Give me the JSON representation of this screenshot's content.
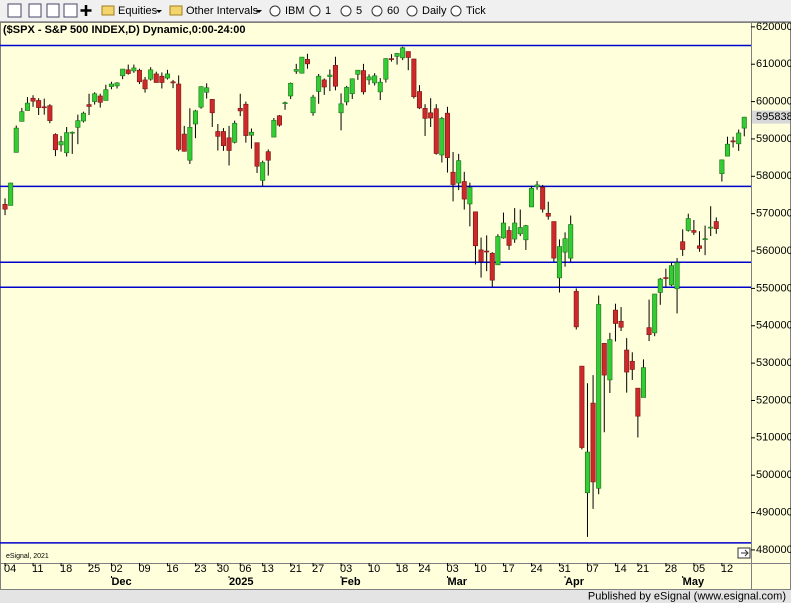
{
  "toolbar": {
    "items": [
      "Equities",
      "Other Intervals",
      "IBM",
      "1",
      "5",
      "60",
      "Daily",
      "Tick"
    ]
  },
  "chart_data": {
    "type": "candlestick",
    "title": "($SPX - S&P 500 INDEX,D) Dynamic,0:00-24:00",
    "up_color": "#33cc33",
    "down_color": "#cc2a2a",
    "open": [
      5725,
      5722,
      5864,
      5947,
      5976,
      6009,
      6003,
      5986,
      5989,
      5912,
      5884,
      5863,
      5917,
      5931,
      5948,
      5992,
      6000,
      6015,
      6003,
      6040,
      6042,
      6069,
      6085,
      6082,
      6084,
      6058,
      6060,
      6074,
      6068,
      6063,
      6053,
      6047,
      5913,
      5843,
      5940,
      5985,
      6025,
      6006,
      5920,
      5920,
      5903,
      5891,
      5982,
      5993,
      5910,
      5890,
      5789,
      5866,
      5905,
      5962,
      5995,
      6015,
      6081,
      6076,
      6113,
      5970,
      6027,
      6058,
      6067,
      6097,
      5970,
      5999,
      6021,
      6073,
      6083,
      6058,
      6050,
      6026,
      6060,
      6115,
      6121,
      6117,
      6134,
      6114,
      6027,
      5982,
      5970,
      5981,
      5857,
      5969,
      5811,
      5782,
      5786,
      5726,
      5705,
      5603,
      5600,
      5594,
      5563,
      5635,
      5655,
      5632,
      5646,
      5630,
      5718,
      5772,
      5771,
      5701,
      5679,
      5528,
      5597,
      5581,
      5492,
      5292,
      4953,
      5193,
      4965,
      5353,
      5255,
      5442,
      5412,
      5335,
      5305,
      5233,
      5208,
      5395,
      5381,
      5489,
      5529,
      5509,
      5499,
      5625,
      5655,
      5655,
      5614,
      5631,
      5663,
      5679,
      5807,
      5854,
      5895,
      5887,
      5929
    ],
    "high": [
      5741,
      5783,
      5936,
      5983,
      6012,
      6017,
      6009,
      6008,
      5993,
      5915,
      5908,
      5932,
      5920,
      5965,
      5973,
      6021,
      6025,
      6021,
      6045,
      6053,
      6052,
      6087,
      6099,
      6099,
      6088,
      6066,
      6092,
      6080,
      6078,
      6085,
      6058,
      6070,
      5935,
      5982,
      5978,
      6041,
      6049,
      6006,
      5940,
      5929,
      5935,
      5949,
      6021,
      6000,
      5928,
      5890,
      5842,
      5872,
      5956,
      5964,
      6000,
      6051,
      6101,
      6119,
      6128,
      6018,
      6074,
      6062,
      6086,
      6120,
      6022,
      6042,
      6062,
      6084,
      6101,
      6073,
      6076,
      6063,
      6116,
      6127,
      6129,
      6147,
      6134,
      6115,
      6044,
      5993,
      6009,
      5993,
      5959,
      5986,
      5865,
      5860,
      5812,
      5783,
      5705,
      5636,
      5642,
      5597,
      5645,
      5703,
      5666,
      5715,
      5711,
      5670,
      5775,
      5787,
      5777,
      5732,
      5679,
      5631,
      5650,
      5695,
      5500,
      5292,
      5246,
      5268,
      5481,
      5353,
      5381,
      5459,
      5450,
      5367,
      5329,
      5233,
      5310,
      5470,
      5485,
      5528,
      5553,
      5571,
      5581,
      5658,
      5700,
      5683,
      5653,
      5668,
      5720,
      5690,
      5845,
      5906,
      5906,
      5925,
      5959
    ],
    "low": [
      5696,
      5722,
      5864,
      5947,
      5976,
      5986,
      5964,
      5965,
      5942,
      5854,
      5866,
      5853,
      5860,
      5886,
      5944,
      5964,
      5992,
      5984,
      6003,
      6033,
      6035,
      6060,
      6072,
      6077,
      6047,
      6024,
      6056,
      6051,
      6035,
      6059,
      6036,
      5867,
      5866,
      5833,
      5902,
      5981,
      6008,
      5932,
      5869,
      5868,
      5829,
      5888,
      5961,
      5890,
      5874,
      5809,
      5773,
      5802,
      5905,
      5933,
      5978,
      6007,
      6074,
      6075,
      6088,
      5962,
      5994,
      6018,
      6028,
      6030,
      5923,
      5990,
      6007,
      6058,
      6019,
      6045,
      6043,
      6004,
      6051,
      6107,
      6099,
      6111,
      6084,
      6008,
      5980,
      5908,
      5932,
      5858,
      5837,
      5810,
      5733,
      5763,
      5711,
      5666,
      5564,
      5529,
      5546,
      5505,
      5563,
      5633,
      5603,
      5622,
      5640,
      5603,
      5718,
      5764,
      5703,
      5684,
      5572,
      5489,
      5558,
      5572,
      5390,
      5069,
      4835,
      4910,
      4949,
      5115,
      5220,
      5358,
      5386,
      5221,
      5255,
      5101,
      5208,
      5359,
      5372,
      5456,
      5505,
      5506,
      5433,
      5587,
      5652,
      5643,
      5598,
      5589,
      5640,
      5646,
      5786,
      5854,
      5877,
      5868,
      5907
    ],
    "close": [
      5712,
      5782,
      5929,
      5973,
      5996,
      6001,
      5984,
      5985,
      5949,
      5871,
      5893,
      5917,
      5918,
      5949,
      5969,
      5987,
      6021,
      5998,
      6032,
      6047,
      6050,
      6087,
      6075,
      6090,
      6053,
      6034,
      6085,
      6051,
      6051,
      6074,
      6050,
      5872,
      5867,
      5931,
      5975,
      6040,
      6037,
      5970,
      5907,
      5882,
      5869,
      5942,
      5975,
      5909,
      5918,
      5827,
      5837,
      5843,
      5950,
      5937,
      5997,
      6049,
      6086,
      6119,
      6101,
      6012,
      6068,
      6039,
      6071,
      6041,
      5994,
      6038,
      6061,
      6084,
      6026,
      6066,
      6069,
      6052,
      6115,
      6114,
      6129,
      6144,
      6118,
      6013,
      5983,
      5955,
      5956,
      5861,
      5955,
      5850,
      5778,
      5842,
      5739,
      5770,
      5614,
      5572,
      5599,
      5522,
      5639,
      5675,
      5615,
      5675,
      5663,
      5668,
      5768,
      5777,
      5712,
      5693,
      5581,
      5612,
      5633,
      5671,
      5397,
      5074,
      5062,
      4982,
      5457,
      5268,
      5363,
      5406,
      5396,
      5276,
      5283,
      5158,
      5288,
      5376,
      5485,
      5525,
      5528,
      5561,
      5569,
      5604,
      5687,
      5650,
      5607,
      5633,
      5664,
      5660,
      5844,
      5886,
      5892,
      5916,
      5958.38
    ],
    "xlim": [
      -0.9,
      133.2
    ],
    "xticks": [
      {
        "value": 0,
        "label": "04"
      },
      {
        "value": 5,
        "label": "11"
      },
      {
        "value": 10,
        "label": "18"
      },
      {
        "value": 15,
        "label": "25"
      },
      {
        "value": 19,
        "label": "02"
      },
      {
        "value": 24,
        "label": "09"
      },
      {
        "value": 29,
        "label": "16"
      },
      {
        "value": 34,
        "label": "23"
      },
      {
        "value": 38,
        "label": "30"
      },
      {
        "value": 42,
        "label": "06"
      },
      {
        "value": 46,
        "label": "13"
      },
      {
        "value": 51,
        "label": "21"
      },
      {
        "value": 55,
        "label": "27"
      },
      {
        "value": 60,
        "label": "03"
      },
      {
        "value": 65,
        "label": "10"
      },
      {
        "value": 70,
        "label": "18"
      },
      {
        "value": 74,
        "label": "24"
      },
      {
        "value": 79,
        "label": "03"
      },
      {
        "value": 84,
        "label": "10"
      },
      {
        "value": 89,
        "label": "17"
      },
      {
        "value": 94,
        "label": "24"
      },
      {
        "value": 99,
        "label": "31"
      },
      {
        "value": 104,
        "label": "07"
      },
      {
        "value": 109,
        "label": "14"
      },
      {
        "value": 113,
        "label": "21"
      },
      {
        "value": 118,
        "label": "28"
      },
      {
        "value": 123,
        "label": "05"
      },
      {
        "value": 128,
        "label": "12"
      }
    ],
    "month_ticks": [
      {
        "value": 19,
        "label": "Dec"
      },
      {
        "value": 40,
        "label": "2025"
      },
      {
        "value": 60,
        "label": "Feb"
      },
      {
        "value": 79,
        "label": "Mar"
      },
      {
        "value": 100,
        "label": "Apr"
      },
      {
        "value": 121,
        "label": "May"
      }
    ],
    "ylim": [
      4765,
      6213
    ],
    "yticks": [
      {
        "value": 6200,
        "label": "620000"
      },
      {
        "value": 6100,
        "label": "610000"
      },
      {
        "value": 6000,
        "label": "600000"
      },
      {
        "value": 5900,
        "label": "590000"
      },
      {
        "value": 5800,
        "label": "580000"
      },
      {
        "value": 5700,
        "label": "570000"
      },
      {
        "value": 5600,
        "label": "560000"
      },
      {
        "value": 5500,
        "label": "550000"
      },
      {
        "value": 5400,
        "label": "540000"
      },
      {
        "value": 5300,
        "label": "530000"
      },
      {
        "value": 5200,
        "label": "520000"
      },
      {
        "value": 5100,
        "label": "510000"
      },
      {
        "value": 5000,
        "label": "500000"
      },
      {
        "value": 4900,
        "label": "490000"
      },
      {
        "value": 4800,
        "label": "480000"
      }
    ],
    "last_price": {
      "value": 5958.38,
      "label": "595838"
    },
    "horizontal_lines": {
      "color": "#0000cc",
      "values": [
        6150,
        5773,
        5570,
        5503,
        4819
      ]
    },
    "watermark": "eSignal, 2021"
  },
  "footer": {
    "text": "Published by eSignal (www.esignal.com)"
  }
}
